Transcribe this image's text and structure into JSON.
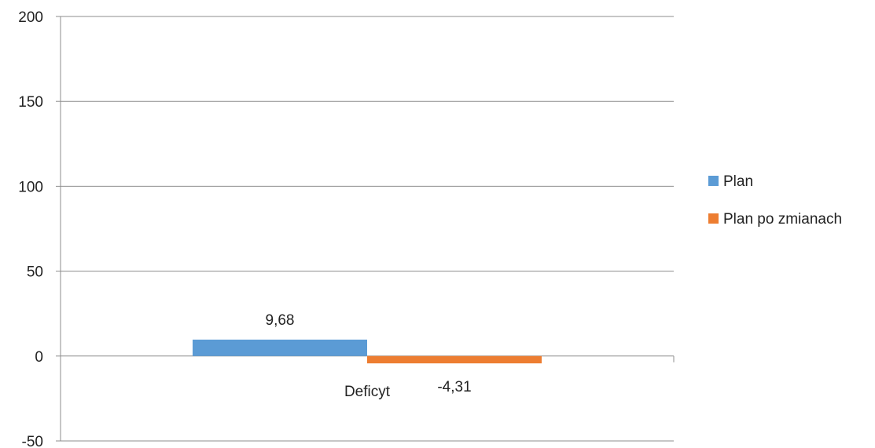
{
  "chart_data": {
    "type": "bar",
    "categories": [
      "Deficyt"
    ],
    "series": [
      {
        "name": "Plan",
        "values": [
          9.68
        ],
        "label": "9,68",
        "color": "#5B9BD5"
      },
      {
        "name": "Plan po zmianach",
        "values": [
          -4.31
        ],
        "label": "-4,31",
        "color": "#ED7D31"
      }
    ],
    "ylim": [
      -50,
      200
    ],
    "yticks": [
      {
        "value": 200,
        "label": "200"
      },
      {
        "value": 150,
        "label": "150"
      },
      {
        "value": 100,
        "label": "100"
      },
      {
        "value": 50,
        "label": "50"
      },
      {
        "value": 0,
        "label": "0"
      },
      {
        "value": -50,
        "label": "-50"
      }
    ],
    "grid": true,
    "legend_position": "right"
  }
}
